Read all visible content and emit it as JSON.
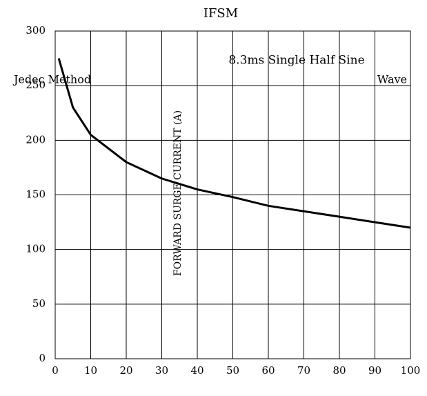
{
  "chart_data": {
    "type": "line",
    "title": "IFSM",
    "annotation_line1": "8.3ms Single Half Sine",
    "annotation_line2": "Wave",
    "annotation_line3": "Jedec Method",
    "y_label": "FORWARD SURGE CURRENT (A)",
    "x": [
      1,
      5,
      10,
      20,
      30,
      40,
      50,
      60,
      70,
      80,
      90,
      100
    ],
    "series": [
      {
        "name": "IFSM",
        "color": "#000000",
        "values": [
          275,
          230,
          205,
          180,
          165,
          155,
          148,
          140,
          135,
          130,
          125,
          120
        ]
      }
    ],
    "xlim": [
      0,
      100
    ],
    "xticks": [
      0,
      10,
      20,
      30,
      40,
      50,
      60,
      70,
      80,
      90,
      100
    ],
    "ylim": [
      0,
      300
    ],
    "yticks": [
      0,
      50,
      100,
      150,
      200,
      250,
      300
    ],
    "grid": true,
    "legend": false
  }
}
